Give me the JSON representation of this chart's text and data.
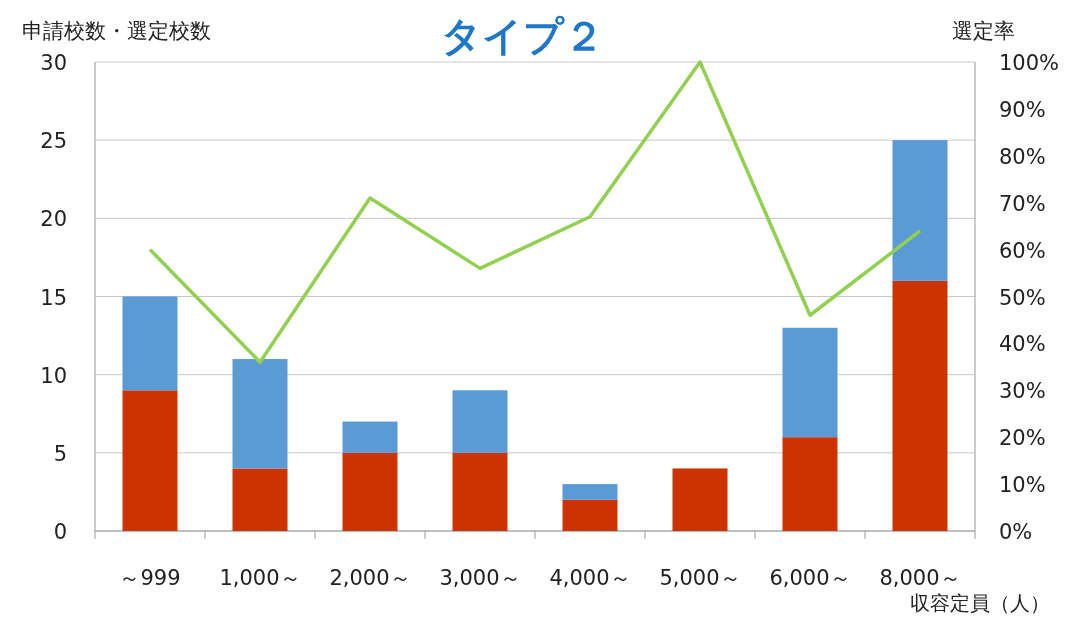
{
  "chart_data": {
    "type": "bar",
    "title": "タイプ２",
    "ylabel": "申請校数・選定校数",
    "y2label": "選定率",
    "xlabel": "収容定員（人）",
    "categories": [
      "～999",
      "1,000～",
      "2,000～",
      "3,000～",
      "4,000～",
      "5,000～",
      "6,000～",
      "8,000～"
    ],
    "stacked": true,
    "series": [
      {
        "color": "#cc3300",
        "values": [
          9,
          4,
          5,
          5,
          2,
          4,
          6,
          16
        ]
      },
      {
        "color": "#5b9bd5",
        "values": [
          6,
          7,
          2,
          4,
          1,
          0,
          7,
          9
        ]
      },
      {
        "type": "line",
        "axis": "y2",
        "color": "#92d050",
        "values": [
          60,
          36,
          71,
          56,
          67,
          100,
          46,
          64
        ]
      }
    ],
    "ylim": [
      0,
      30
    ],
    "yticks": [
      0,
      5,
      10,
      15,
      20,
      25,
      30
    ],
    "y2lim": [
      0,
      100
    ],
    "y2ticks": [
      {
        "value": 0,
        "label": "0%"
      },
      {
        "value": 10,
        "label": "10%"
      },
      {
        "value": 20,
        "label": "20%"
      },
      {
        "value": 30,
        "label": "30%"
      },
      {
        "value": 40,
        "label": "40%"
      },
      {
        "value": 50,
        "label": "50%"
      },
      {
        "value": 60,
        "label": "60%"
      },
      {
        "value": 70,
        "label": "70%"
      },
      {
        "value": 80,
        "label": "80%"
      },
      {
        "value": 90,
        "label": "90%"
      },
      {
        "value": 100,
        "label": "100%"
      }
    ],
    "grid": "y"
  }
}
